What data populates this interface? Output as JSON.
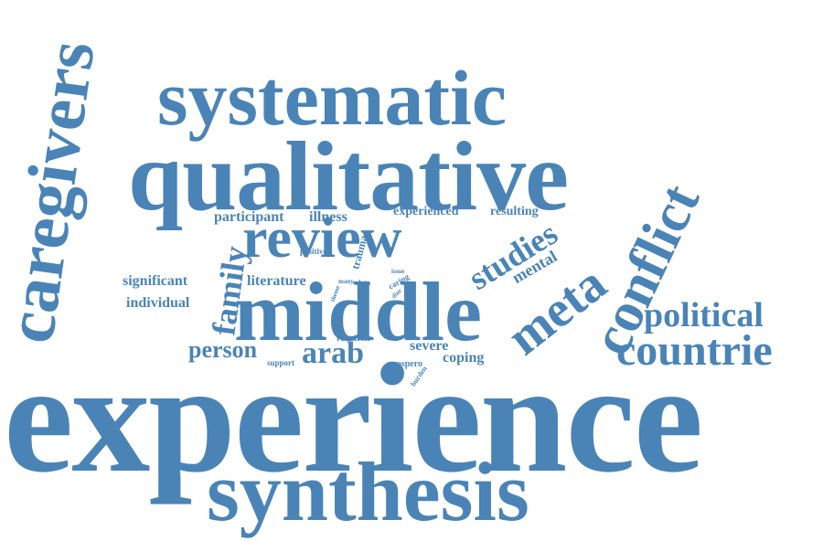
{
  "accent_color": "#4a84b7",
  "background_color": "#ffffff",
  "words": {
    "experience": "experience",
    "synthesis": "synthesis",
    "qualitative": "qualitative",
    "systematic": "systematic",
    "caregivers": "caregivers",
    "middle": "middle",
    "review": "review",
    "conflict": "conflict",
    "countrie": "countrie",
    "political": "political",
    "meta": "meta",
    "studies": "studies",
    "arab": "arab",
    "person": "person",
    "family": "family",
    "mental": "mental",
    "participant": "participant",
    "illness": "illness",
    "experienced": "experienced",
    "resulting": "resulting",
    "significant": "significant",
    "individual": "individual",
    "literature": "literature",
    "severe": "severe",
    "coping": "coping",
    "trauma": "trauma",
    "positive": "positive",
    "research": "research",
    "support": "support",
    "prospero": "prospero",
    "burden": "burden",
    "caring": "caring",
    "issue": "issue",
    "data": "data",
    "many": "many",
    "theme": "theme",
    "area": "area",
    "diar": "diar"
  }
}
